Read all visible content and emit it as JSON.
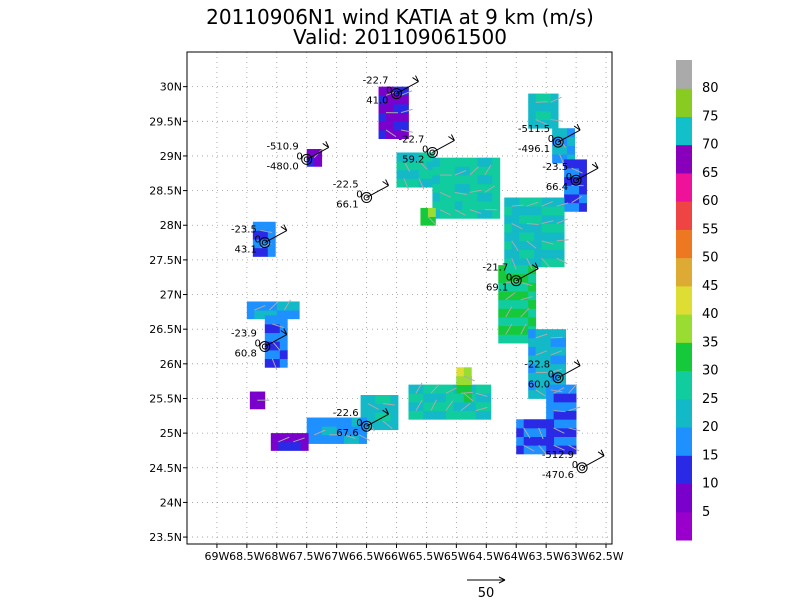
{
  "chart_data": {
    "type": "heatmap",
    "title": "20110906N1 wind KATIA at 9 km (m/s)",
    "subtitle": "Valid: 201109061500",
    "xlabel": "",
    "ylabel": "",
    "xlim": [
      -69.5,
      -62.4
    ],
    "ylim": [
      23.4,
      30.5
    ],
    "grid": true,
    "x_ticks": [
      {
        "v": -69.0,
        "label": "69W"
      },
      {
        "v": -68.5,
        "label": "68.5W"
      },
      {
        "v": -68.0,
        "label": "68W"
      },
      {
        "v": -67.5,
        "label": "67.5W"
      },
      {
        "v": -67.0,
        "label": "67W"
      },
      {
        "v": -66.5,
        "label": "66.5W"
      },
      {
        "v": -66.0,
        "label": "66W"
      },
      {
        "v": -65.5,
        "label": "65.5W"
      },
      {
        "v": -65.0,
        "label": "65W"
      },
      {
        "v": -64.5,
        "label": "64.5W"
      },
      {
        "v": -64.0,
        "label": "64W"
      },
      {
        "v": -63.5,
        "label": "63.5W"
      },
      {
        "v": -63.0,
        "label": "63W"
      },
      {
        "v": -62.5,
        "label": "62.5W"
      }
    ],
    "y_ticks": [
      {
        "v": 23.5,
        "label": "23.5N"
      },
      {
        "v": 24.0,
        "label": "24N"
      },
      {
        "v": 24.5,
        "label": "24.5N"
      },
      {
        "v": 25.0,
        "label": "25N"
      },
      {
        "v": 25.5,
        "label": "25.5N"
      },
      {
        "v": 26.0,
        "label": "26N"
      },
      {
        "v": 26.5,
        "label": "26.5N"
      },
      {
        "v": 27.0,
        "label": "27N"
      },
      {
        "v": 27.5,
        "label": "27.5N"
      },
      {
        "v": 28.0,
        "label": "28N"
      },
      {
        "v": 28.5,
        "label": "28.5N"
      },
      {
        "v": 29.0,
        "label": "29N"
      },
      {
        "v": 29.5,
        "label": "29.5N"
      },
      {
        "v": 30.0,
        "label": "30N"
      }
    ],
    "colorbar": {
      "placement": "right",
      "labels": [
        "5",
        "10",
        "15",
        "20",
        "25",
        "30",
        "35",
        "40",
        "45",
        "50",
        "55",
        "60",
        "65",
        "70",
        "75",
        "80"
      ],
      "colors": [
        "#9900cc",
        "#7a00cc",
        "#2a2ae6",
        "#1e90ff",
        "#14b9c8",
        "#11cc9e",
        "#16c93a",
        "#99dd33",
        "#dddd33",
        "#ddaa33",
        "#ee7722",
        "#ee4444",
        "#ee1199",
        "#8800bb",
        "#11c0c8",
        "#88cc22",
        "#aaaaaa"
      ]
    },
    "cells_note": "swaths of wind-speed cells, values in m/s",
    "swaths": [
      {
        "lon0": -66.3,
        "lat0": 29.25,
        "lon1": -65.9,
        "lat1": 29.9,
        "value": 8
      },
      {
        "lon0": -67.5,
        "lat0": 28.85,
        "lon1": -67.3,
        "lat1": 29.1,
        "value": 8
      },
      {
        "lon0": -66.0,
        "lat0": 28.55,
        "lon1": -65.4,
        "lat1": 29.05,
        "value": 26
      },
      {
        "lon0": -65.4,
        "lat0": 28.1,
        "lon1": -64.3,
        "lat1": 28.9,
        "value": 27
      },
      {
        "lon0": -65.6,
        "lat0": 28.0,
        "lon1": -65.4,
        "lat1": 28.2,
        "value": 33
      },
      {
        "lon0": -63.8,
        "lat0": 29.4,
        "lon1": -63.4,
        "lat1": 29.8,
        "value": 23
      },
      {
        "lon0": -63.4,
        "lat0": 28.9,
        "lon1": -63.1,
        "lat1": 29.4,
        "value": 20
      },
      {
        "lon0": -63.2,
        "lat0": 28.2,
        "lon1": -62.9,
        "lat1": 28.9,
        "value": 14
      },
      {
        "lon0": -64.2,
        "lat0": 27.4,
        "lon1": -63.3,
        "lat1": 28.3,
        "value": 24
      },
      {
        "lon0": -64.3,
        "lat0": 26.3,
        "lon1": -63.7,
        "lat1": 27.4,
        "value": 30
      },
      {
        "lon0": -63.8,
        "lat0": 25.5,
        "lon1": -63.2,
        "lat1": 26.4,
        "value": 22
      },
      {
        "lon0": -63.5,
        "lat0": 24.7,
        "lon1": -63.0,
        "lat1": 25.6,
        "value": 16
      },
      {
        "lon0": -64.0,
        "lat0": 24.7,
        "lon1": -63.4,
        "lat1": 25.1,
        "value": 14
      },
      {
        "lon0": -65.8,
        "lat0": 25.2,
        "lon1": -64.5,
        "lat1": 25.6,
        "value": 26
      },
      {
        "lon0": -65.0,
        "lat0": 25.45,
        "lon1": -64.8,
        "lat1": 25.8,
        "value": 32
      },
      {
        "lon0": -65.0,
        "lat0": 25.7,
        "lon1": -64.85,
        "lat1": 25.9,
        "value": 38
      },
      {
        "lon0": -66.6,
        "lat0": 25.05,
        "lon1": -66.0,
        "lat1": 25.5,
        "value": 23
      },
      {
        "lon0": -67.5,
        "lat0": 24.85,
        "lon1": -66.6,
        "lat1": 25.15,
        "value": 18
      },
      {
        "lon0": -68.1,
        "lat0": 24.75,
        "lon1": -67.5,
        "lat1": 25.0,
        "value": 9
      },
      {
        "lon0": -68.5,
        "lat0": 26.65,
        "lon1": -67.7,
        "lat1": 26.9,
        "value": 19
      },
      {
        "lon0": -68.2,
        "lat0": 25.95,
        "lon1": -67.9,
        "lat1": 26.65,
        "value": 16
      },
      {
        "lon0": -68.4,
        "lat0": 27.55,
        "lon1": -68.05,
        "lat1": 28.0,
        "value": 17
      },
      {
        "lon0": -68.45,
        "lat0": 25.35,
        "lon1": -68.3,
        "lat1": 25.55,
        "value": 8
      }
    ],
    "annotations": [
      {
        "lon": -66.0,
        "lat": 29.9,
        "lines": [
          "-22.7",
          "0",
          "41.0"
        ]
      },
      {
        "lon": -67.5,
        "lat": 28.95,
        "lines": [
          "-510.9",
          "0",
          "-480.0"
        ]
      },
      {
        "lon": -65.4,
        "lat": 29.05,
        "lines": [
          "-22.7",
          "0",
          "59.2"
        ]
      },
      {
        "lon": -63.3,
        "lat": 29.2,
        "lines": [
          "-511.5",
          "0",
          "-496.1"
        ]
      },
      {
        "lon": -66.5,
        "lat": 28.4,
        "lines": [
          "-22.5",
          "0",
          "66.1"
        ]
      },
      {
        "lon": -63.0,
        "lat": 28.65,
        "lines": [
          "-23.5",
          "0",
          "66.4"
        ]
      },
      {
        "lon": -68.2,
        "lat": 27.75,
        "lines": [
          "-23.5",
          "0",
          "43.1"
        ]
      },
      {
        "lon": -64.0,
        "lat": 27.2,
        "lines": [
          "-21.7",
          "0",
          "69.1"
        ]
      },
      {
        "lon": -68.2,
        "lat": 26.25,
        "lines": [
          "-23.9",
          "0",
          "60.8"
        ]
      },
      {
        "lon": -63.3,
        "lat": 25.8,
        "lines": [
          "-22.8",
          "0",
          "60.0"
        ]
      },
      {
        "lon": -66.5,
        "lat": 25.1,
        "lines": [
          "-22.6",
          "0",
          "67.6"
        ]
      },
      {
        "lon": -62.9,
        "lat": 24.5,
        "lines": [
          "-512.9",
          "0",
          "-470.6"
        ]
      }
    ],
    "reference_vector_label": "50"
  }
}
